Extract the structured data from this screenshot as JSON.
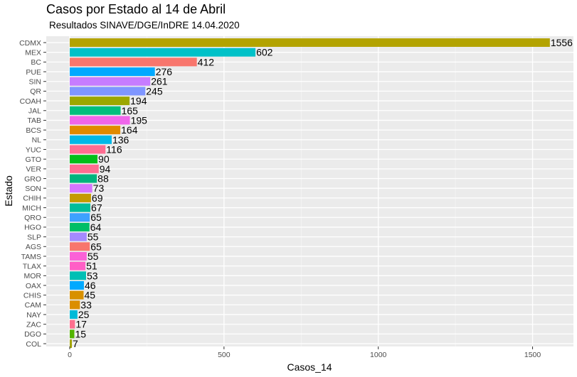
{
  "chart_data": {
    "type": "bar",
    "orientation": "horizontal",
    "title": "Casos por Estado al 14 de Abril",
    "subtitle": "Resultados  SINAVE/DGE/InDRE 14.04.2020",
    "xlabel": "Casos_14",
    "ylabel": "Estado",
    "xlim": [
      0,
      1640
    ],
    "xticks": [
      0,
      500,
      1000,
      1500
    ],
    "grid": true,
    "legend": "none",
    "categories": [
      "CDMX",
      "MEX",
      "BC",
      "PUE",
      "SIN",
      "QR",
      "COAH",
      "JAL",
      "TAB",
      "BCS",
      "NL",
      "YUC",
      "GTO",
      "VER",
      "GRO",
      "SON",
      "CHIH",
      "MICH",
      "QRO",
      "HGO",
      "SLP",
      "AGS",
      "TAMS",
      "TLAX",
      "MOR",
      "OAX",
      "CHIS",
      "CAM",
      "NAY",
      "ZAC",
      "DGO",
      "COL"
    ],
    "values": [
      1556,
      602,
      412,
      276,
      261,
      245,
      194,
      165,
      195,
      164,
      136,
      116,
      90,
      94,
      88,
      73,
      69,
      67,
      65,
      64,
      55,
      65,
      55,
      51,
      53,
      46,
      45,
      33,
      25,
      17,
      15,
      7
    ],
    "colors": [
      "#B3A300",
      "#00C1C8",
      "#F8766D",
      "#00A9FF",
      "#C77CFF",
      "#7F96FF",
      "#9CA700",
      "#00BF7D",
      "#F066EA",
      "#E18A00",
      "#00B8E7",
      "#FF6C91",
      "#00BE1A",
      "#FF6C91",
      "#00B47D",
      "#D575FE",
      "#C49A00",
      "#00BD9B",
      "#3DA1FF",
      "#00BE67",
      "#A58AFF",
      "#F8766D",
      "#FB61D7",
      "#FF5FC6",
      "#00BFB4",
      "#00A9FF",
      "#D89000",
      "#DB8E00",
      "#00BAD8",
      "#FD6F8F",
      "#53B400",
      "#A3A500"
    ]
  }
}
